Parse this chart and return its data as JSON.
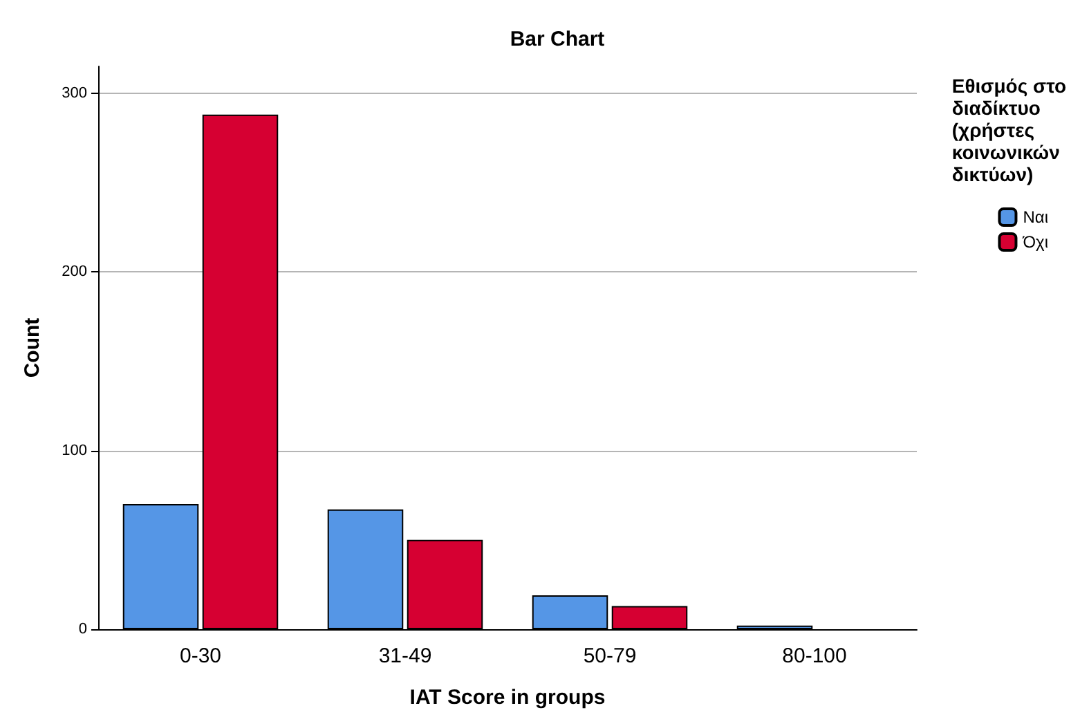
{
  "chart_data": {
    "type": "bar",
    "title": "Bar Chart",
    "xlabel": "IAT Score in groups",
    "ylabel": "Count",
    "legend_title": "Εθισμός στο διαδίκτυο (χρήστες κοινωνικών δικτύων)",
    "categories": [
      "0-30",
      "31-49",
      "50-79",
      "80-100"
    ],
    "series": [
      {
        "name": "Ναι",
        "color": "#5596e6",
        "values": [
          70,
          67,
          19,
          2
        ]
      },
      {
        "name": "Όχι",
        "color": "#d60032",
        "values": [
          288,
          50,
          13,
          null
        ]
      }
    ],
    "ylim": [
      0,
      315
    ],
    "yticks": [
      0,
      100,
      200,
      300
    ],
    "grid": "y",
    "legend": "right"
  }
}
